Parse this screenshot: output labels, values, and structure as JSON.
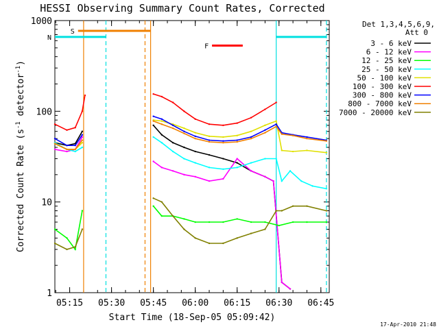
{
  "chart_data": {
    "type": "line",
    "title": "HESSI Observing Summary Count Rates, Corrected",
    "xlabel": "Start Time (18-Sep-05 05:09:42)",
    "ylabel": "Corrected Count Rate (s",
    "ylabel_sup1": "-1",
    "ylabel_mid": " detector",
    "ylabel_sup2": "-1",
    "ylabel_end": ")",
    "yscale": "log",
    "ylim": [
      1,
      1000
    ],
    "xlim": [
      "05:09:42",
      "06:48:00"
    ],
    "x_ticks": [
      "05:15",
      "05:30",
      "05:45",
      "06:00",
      "06:15",
      "06:30",
      "06:45"
    ],
    "y_ticks": [
      "1",
      "10",
      "100",
      "1000"
    ],
    "legend_header": [
      "Det 1,3,4,5,6,9,",
      "Att 0"
    ],
    "legend_position": "right",
    "timestamp": "17-Apr-2010 21:48",
    "annotations": {
      "S": {
        "label": "S",
        "time_start": "05:18",
        "time_end": "05:44",
        "y": 770,
        "color": "#f08000"
      },
      "N": {
        "label": "N",
        "time_start": "05:09:42",
        "time_end": "05:28",
        "y": 660,
        "color": "#00e0e0"
      },
      "N2": {
        "label": "",
        "time_start": "06:29",
        "time_end": "06:47",
        "y": 660,
        "color": "#00e0e0"
      },
      "F": {
        "label": "F",
        "time_start": "06:06",
        "time_end": "06:17",
        "y": 530,
        "color": "#ff0000"
      },
      "vlines": [
        {
          "time": "05:20",
          "color": "#f08000",
          "style": "solid"
        },
        {
          "time": "05:28",
          "color": "#00e0e0",
          "style": "dashed"
        },
        {
          "time": "05:42",
          "color": "#f08000",
          "style": "dashed"
        },
        {
          "time": "05:44",
          "color": "#f08000",
          "style": "solid"
        },
        {
          "time": "06:29",
          "color": "#00e0e0",
          "style": "solid"
        },
        {
          "time": "06:47",
          "color": "#00e0e0",
          "style": "dashed"
        }
      ]
    },
    "series": [
      {
        "name": "3 - 6 keV",
        "color": "#000000",
        "segments": [
          {
            "t": [
              "05:09:42",
              "05:14",
              "05:17",
              "05:19:30"
            ],
            "v": [
              45,
              42,
              44,
              60
            ]
          },
          {
            "t": [
              "05:45",
              "05:48",
              "05:52",
              "05:56",
              "06:00",
              "06:05",
              "06:10",
              "06:15",
              "06:20",
              "06:25",
              "06:28",
              "06:31",
              "06:34"
            ],
            "v": [
              70,
              55,
              45,
              40,
              36,
              33,
              30,
              27,
              22,
              19,
              17,
              1.3,
              1.1
            ]
          }
        ]
      },
      {
        "name": "6 - 12 keV",
        "color": "#ff00ff",
        "segments": [
          {
            "t": [
              "05:09:42",
              "05:14",
              "05:17",
              "05:19:30"
            ],
            "v": [
              38,
              36,
              38,
              52
            ]
          },
          {
            "t": [
              "05:45",
              "05:48",
              "05:52",
              "05:56",
              "06:00",
              "06:05",
              "06:10",
              "06:15",
              "06:20",
              "06:25",
              "06:28",
              "06:31",
              "06:34"
            ],
            "v": [
              28,
              24,
              22,
              20,
              19,
              17,
              18,
              30,
              22,
              19,
              17,
              1.3,
              1.1
            ]
          }
        ]
      },
      {
        "name": "12 - 25 keV",
        "color": "#00ff00",
        "segments": [
          {
            "t": [
              "05:09:42",
              "05:14",
              "05:17",
              "05:19:30"
            ],
            "v": [
              5,
              4,
              3,
              8
            ]
          },
          {
            "t": [
              "05:45",
              "05:48",
              "05:52",
              "05:56",
              "06:00",
              "06:05",
              "06:10",
              "06:15",
              "06:20",
              "06:25",
              "06:30",
              "06:35",
              "06:40",
              "06:47"
            ],
            "v": [
              9,
              7,
              7,
              6.5,
              6,
              6,
              6,
              6.5,
              6,
              6,
              5.5,
              6,
              6,
              6
            ]
          }
        ]
      },
      {
        "name": "25 - 50 keV",
        "color": "#00ffff",
        "segments": [
          {
            "t": [
              "05:09:42",
              "05:14",
              "05:17",
              "05:19:30"
            ],
            "v": [
              45,
              38,
              36,
              40
            ]
          },
          {
            "t": [
              "05:45",
              "05:48",
              "05:52",
              "05:56",
              "06:00",
              "06:05",
              "06:10",
              "06:15",
              "06:20",
              "06:25",
              "06:29",
              "06:31",
              "06:34",
              "06:38",
              "06:42",
              "06:47"
            ],
            "v": [
              52,
              45,
              36,
              30,
              27,
              24,
              23,
              24,
              27,
              30,
              30,
              17,
              22,
              17,
              15,
              14
            ]
          }
        ]
      },
      {
        "name": "50 - 100 keV",
        "color": "#e0e000",
        "segments": [
          {
            "t": [
              "05:09:42",
              "05:14",
              "05:17",
              "05:19:30"
            ],
            "v": [
              44,
              38,
              38,
              45
            ]
          },
          {
            "t": [
              "05:45",
              "05:48",
              "05:52",
              "05:56",
              "06:00",
              "06:05",
              "06:10",
              "06:15",
              "06:20",
              "06:25",
              "06:29",
              "06:31",
              "06:35",
              "06:40",
              "06:47"
            ],
            "v": [
              80,
              78,
              72,
              65,
              58,
              53,
              52,
              54,
              60,
              70,
              78,
              37,
              36,
              37,
              35
            ]
          }
        ]
      },
      {
        "name": "100 - 300 keV",
        "color": "#ff0000",
        "segments": [
          {
            "t": [
              "05:09:42",
              "05:14",
              "05:17",
              "05:19:30",
              "05:20:30"
            ],
            "v": [
              72,
              62,
              66,
              100,
              150
            ]
          },
          {
            "t": [
              "05:45",
              "05:48",
              "05:52",
              "05:56",
              "06:00",
              "06:05",
              "06:10",
              "06:15",
              "06:20",
              "06:25",
              "06:29"
            ],
            "v": [
              155,
              145,
              125,
              100,
              82,
              72,
              70,
              74,
              85,
              105,
              125
            ]
          }
        ]
      },
      {
        "name": "300 - 800 keV",
        "color": "#0000ff",
        "segments": [
          {
            "t": [
              "05:09:42",
              "05:14",
              "05:17",
              "05:19:30"
            ],
            "v": [
              50,
              42,
              42,
              55
            ]
          },
          {
            "t": [
              "05:45",
              "05:48",
              "05:52",
              "05:56",
              "06:00",
              "06:05",
              "06:10",
              "06:15",
              "06:20",
              "06:25",
              "06:29",
              "06:31",
              "06:35",
              "06:40",
              "06:47"
            ],
            "v": [
              88,
              82,
              70,
              60,
              53,
              48,
              47,
              48,
              52,
              62,
              72,
              58,
              55,
              52,
              48
            ]
          }
        ]
      },
      {
        "name": "800 - 7000 keV",
        "color": "#f08000",
        "segments": [
          {
            "t": [
              "05:09:42",
              "05:14",
              "05:17",
              "05:19:30"
            ],
            "v": [
              44,
              38,
              38,
              48
            ]
          },
          {
            "t": [
              "05:45",
              "05:48",
              "05:52",
              "05:56",
              "06:00",
              "06:05",
              "06:10",
              "06:15",
              "06:20",
              "06:25",
              "06:29",
              "06:31",
              "06:35",
              "06:40",
              "06:47"
            ],
            "v": [
              78,
              72,
              65,
              57,
              50,
              46,
              45,
              46,
              50,
              58,
              68,
              56,
              54,
              50,
              47
            ]
          }
        ]
      },
      {
        "name": "7000 - 20000 keV",
        "color": "#808000",
        "segments": [
          {
            "t": [
              "05:09:42",
              "05:14",
              "05:17",
              "05:19:30"
            ],
            "v": [
              3.5,
              3,
              3.2,
              5
            ]
          },
          {
            "t": [
              "05:45",
              "05:48",
              "05:52",
              "05:56",
              "06:00",
              "06:05",
              "06:10",
              "06:15",
              "06:20",
              "06:25",
              "06:29",
              "06:31",
              "06:35",
              "06:40",
              "06:47"
            ],
            "v": [
              11,
              10,
              7,
              5,
              4,
              3.5,
              3.5,
              4,
              4.5,
              5,
              8,
              8,
              9,
              9,
              8
            ]
          }
        ]
      }
    ]
  }
}
